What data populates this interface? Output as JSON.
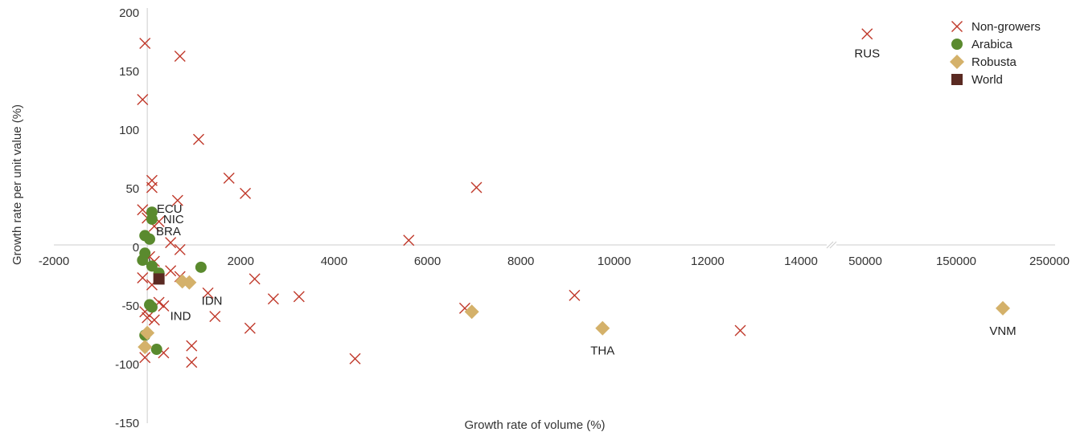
{
  "chart_data": {
    "type": "scatter",
    "xlabel": "Growth rate of volume (%)",
    "ylabel": "Growth rate per unit value (%)",
    "ylim": [
      -150,
      200
    ],
    "y_ticks": [
      200,
      150,
      100,
      50,
      0,
      -50,
      -100,
      -150
    ],
    "x_axis_broken": true,
    "x_ticks_left": [
      "-2000",
      "0",
      "2000",
      "4000",
      "6000",
      "8000",
      "10000",
      "12000",
      "14000"
    ],
    "x_ticks_right": [
      "50000",
      "150000",
      "250000"
    ],
    "xlim_left": [
      -2000,
      14000
    ],
    "xlim_right": [
      0,
      250000
    ],
    "legend_position": "top-right",
    "series": [
      {
        "name": "Non-growers",
        "marker": "x",
        "color": "#c0392b",
        "points": [
          {
            "x": -50,
            "y": 174
          },
          {
            "x": 700,
            "y": 163
          },
          {
            "x": -100,
            "y": 126
          },
          {
            "x": 1100,
            "y": 92
          },
          {
            "x": 1750,
            "y": 59
          },
          {
            "x": 100,
            "y": 57
          },
          {
            "x": 2100,
            "y": 46
          },
          {
            "x": 100,
            "y": 51
          },
          {
            "x": 7050,
            "y": 51
          },
          {
            "x": 650,
            "y": 40
          },
          {
            "x": -100,
            "y": 32
          },
          {
            "x": 0,
            "y": 25
          },
          {
            "x": 150,
            "y": 18
          },
          {
            "x": 250,
            "y": 22
          },
          {
            "x": 500,
            "y": 4
          },
          {
            "x": 700,
            "y": -2
          },
          {
            "x": 5600,
            "y": 6
          },
          {
            "x": 50,
            "y": -8
          },
          {
            "x": 150,
            "y": -12
          },
          {
            "x": 500,
            "y": -20
          },
          {
            "x": 700,
            "y": -25
          },
          {
            "x": -100,
            "y": -26
          },
          {
            "x": 2300,
            "y": -27
          },
          {
            "x": 100,
            "y": -32
          },
          {
            "x": 1300,
            "y": -39
          },
          {
            "x": 3250,
            "y": -42
          },
          {
            "x": 2700,
            "y": -44
          },
          {
            "x": 9150,
            "y": -41
          },
          {
            "x": 250,
            "y": -47
          },
          {
            "x": 350,
            "y": -50
          },
          {
            "x": 6800,
            "y": -52
          },
          {
            "x": -50,
            "y": -55
          },
          {
            "x": 1450,
            "y": -59
          },
          {
            "x": 0,
            "y": -60
          },
          {
            "x": 150,
            "y": -62
          },
          {
            "x": 2200,
            "y": -69
          },
          {
            "x": 12700,
            "y": -71
          },
          {
            "x": 950,
            "y": -84
          },
          {
            "x": 350,
            "y": -90
          },
          {
            "x": -50,
            "y": -94
          },
          {
            "x": 4450,
            "y": -95
          },
          {
            "x": 950,
            "y": -98
          },
          {
            "x": 52000,
            "y": 182,
            "label": "RUS"
          }
        ]
      },
      {
        "name": "Arabica",
        "marker": "circle",
        "color": "#5a8a2e",
        "points": [
          {
            "x": 100,
            "y": 30,
            "label": "ECU"
          },
          {
            "x": 100,
            "y": 24,
            "label": "NIC"
          },
          {
            "x": -50,
            "y": 10
          },
          {
            "x": 50,
            "y": 7,
            "label": "BRA"
          },
          {
            "x": -50,
            "y": -5
          },
          {
            "x": -100,
            "y": -11
          },
          {
            "x": 100,
            "y": -16
          },
          {
            "x": 250,
            "y": -22
          },
          {
            "x": 1150,
            "y": -17
          },
          {
            "x": 50,
            "y": -49
          },
          {
            "x": 100,
            "y": -51
          },
          {
            "x": -50,
            "y": -75
          },
          {
            "x": 200,
            "y": -87
          }
        ]
      },
      {
        "name": "Robusta",
        "marker": "diamond",
        "color": "#d4b16a",
        "points": [
          {
            "x": 750,
            "y": -29,
            "label": "IDN"
          },
          {
            "x": 900,
            "y": -30
          },
          {
            "x": 0,
            "y": -73
          },
          {
            "x": -50,
            "y": -85
          },
          {
            "x": 6950,
            "y": -55
          },
          {
            "x": 9750,
            "y": -69,
            "label": "THA"
          },
          {
            "x": 200000,
            "y": -52,
            "label": "VNM"
          }
        ]
      },
      {
        "name": "World",
        "marker": "square",
        "color": "#5a2a22",
        "points": [
          {
            "x": 250,
            "y": -27,
            "label": "IND"
          }
        ]
      }
    ]
  }
}
